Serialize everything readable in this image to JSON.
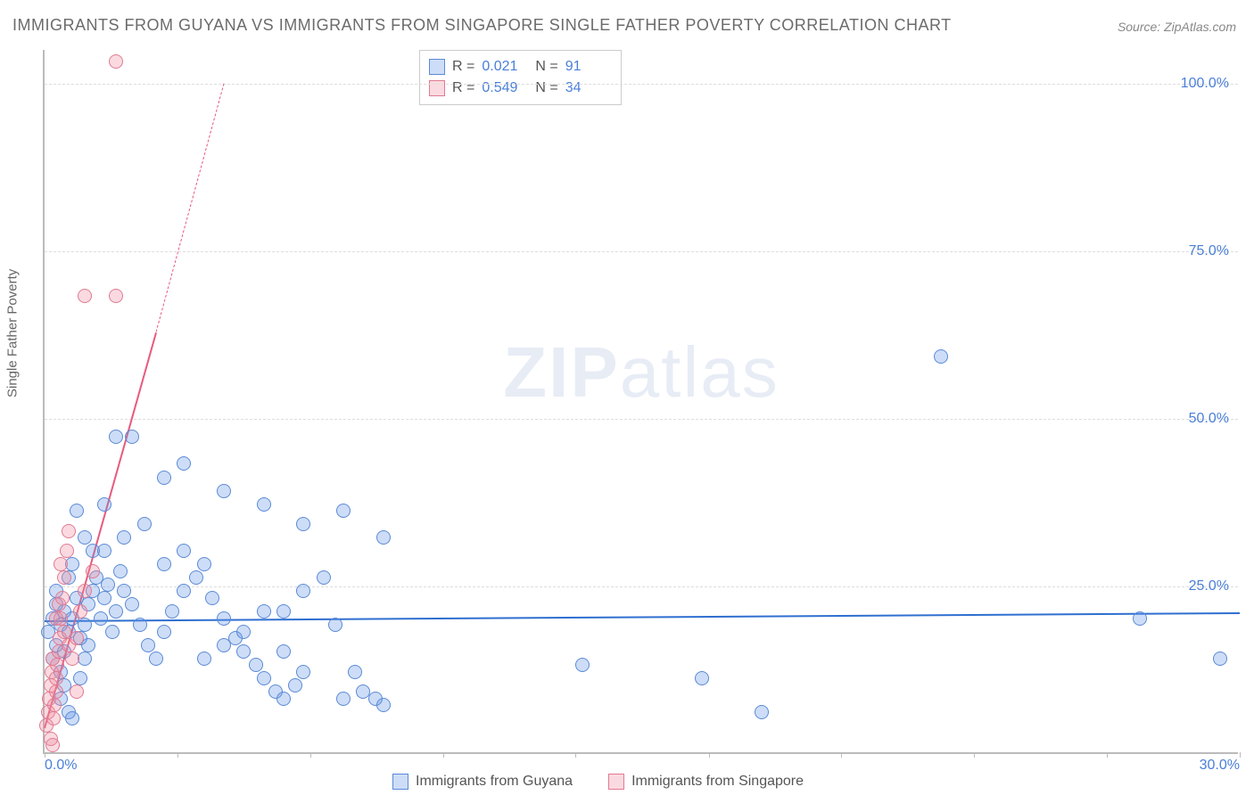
{
  "title": "IMMIGRANTS FROM GUYANA VS IMMIGRANTS FROM SINGAPORE SINGLE FATHER POVERTY CORRELATION CHART",
  "source": "Source: ZipAtlas.com",
  "watermark_bold": "ZIP",
  "watermark_rest": "atlas",
  "chart": {
    "type": "scatter",
    "ylabel": "Single Father Poverty",
    "xlim": [
      0,
      30
    ],
    "ylim": [
      0,
      105
    ],
    "xtick_marks": [
      0,
      3.33,
      6.67,
      10,
      13.33,
      16.67,
      20,
      23.33,
      26.67,
      30
    ],
    "xtick_labels": [
      {
        "v": 0,
        "label": "0.0%"
      },
      {
        "v": 30,
        "label": "30.0%"
      }
    ],
    "ytick_labels": [
      {
        "v": 25,
        "label": "25.0%"
      },
      {
        "v": 50,
        "label": "50.0%"
      },
      {
        "v": 75,
        "label": "75.0%"
      },
      {
        "v": 100,
        "label": "100.0%"
      }
    ],
    "grid_y": [
      25,
      50,
      75,
      100
    ],
    "grid_color": "#dddddd",
    "background_color": "#ffffff",
    "marker_radius": 8,
    "marker_stroke_width": 1,
    "series": [
      {
        "name": "Immigrants from Guyana",
        "fill": "rgba(100,150,230,0.32)",
        "stroke": "#5b8ad6",
        "R": "0.021",
        "N": "91",
        "trend": {
          "x1": 0,
          "y1": 20.0,
          "x2": 30,
          "y2": 21.2,
          "color": "#2f6fd0",
          "width": 2
        },
        "points": [
          [
            0.1,
            18
          ],
          [
            0.2,
            20
          ],
          [
            0.3,
            22
          ],
          [
            0.2,
            14
          ],
          [
            0.3,
            16
          ],
          [
            0.4,
            19
          ],
          [
            0.5,
            21
          ],
          [
            0.3,
            24
          ],
          [
            0.4,
            12
          ],
          [
            0.5,
            15
          ],
          [
            0.6,
            18
          ],
          [
            0.7,
            20
          ],
          [
            0.8,
            23
          ],
          [
            0.6,
            26
          ],
          [
            0.7,
            28
          ],
          [
            0.9,
            17
          ],
          [
            1.0,
            19
          ],
          [
            1.1,
            22
          ],
          [
            1.2,
            24
          ],
          [
            1.3,
            26
          ],
          [
            1.0,
            14
          ],
          [
            1.1,
            16
          ],
          [
            1.4,
            20
          ],
          [
            1.5,
            23
          ],
          [
            1.6,
            25
          ],
          [
            1.7,
            18
          ],
          [
            1.8,
            21
          ],
          [
            1.9,
            27
          ],
          [
            2.0,
            24
          ],
          [
            2.2,
            22
          ],
          [
            2.4,
            19
          ],
          [
            2.6,
            16
          ],
          [
            2.8,
            14
          ],
          [
            3.0,
            18
          ],
          [
            3.2,
            21
          ],
          [
            3.5,
            24
          ],
          [
            3.8,
            26
          ],
          [
            4.0,
            28
          ],
          [
            4.2,
            23
          ],
          [
            4.5,
            20
          ],
          [
            4.8,
            17
          ],
          [
            5.0,
            15
          ],
          [
            5.3,
            13
          ],
          [
            5.5,
            11
          ],
          [
            5.8,
            9
          ],
          [
            6.0,
            8
          ],
          [
            6.3,
            10
          ],
          [
            6.5,
            12
          ],
          [
            1.5,
            30
          ],
          [
            2.0,
            32
          ],
          [
            2.5,
            34
          ],
          [
            3.0,
            41
          ],
          [
            3.5,
            43
          ],
          [
            1.8,
            47
          ],
          [
            2.2,
            47
          ],
          [
            1.5,
            37
          ],
          [
            4.5,
            39
          ],
          [
            5.5,
            37
          ],
          [
            6.5,
            34
          ],
          [
            7.5,
            36
          ],
          [
            8.5,
            32
          ],
          [
            7.5,
            8
          ],
          [
            8.0,
            9
          ],
          [
            8.3,
            8
          ],
          [
            8.5,
            7
          ],
          [
            7.8,
            12
          ],
          [
            6.0,
            21
          ],
          [
            6.5,
            24
          ],
          [
            7.0,
            26
          ],
          [
            7.3,
            19
          ],
          [
            4.0,
            14
          ],
          [
            4.5,
            16
          ],
          [
            5.0,
            18
          ],
          [
            5.5,
            21
          ],
          [
            6.0,
            15
          ],
          [
            3.0,
            28
          ],
          [
            3.5,
            30
          ],
          [
            0.8,
            36
          ],
          [
            1.0,
            32
          ],
          [
            1.2,
            30
          ],
          [
            13.5,
            13
          ],
          [
            16.5,
            11
          ],
          [
            18.0,
            6
          ],
          [
            22.5,
            59
          ],
          [
            27.5,
            20
          ],
          [
            29.5,
            14
          ],
          [
            0.4,
            8
          ],
          [
            0.5,
            10
          ],
          [
            0.6,
            6
          ],
          [
            0.7,
            5
          ],
          [
            0.9,
            11
          ]
        ]
      },
      {
        "name": "Immigrants from Singapore",
        "fill": "rgba(240,140,160,0.32)",
        "stroke": "#e07a92",
        "R": "0.549",
        "N": "34",
        "trend": {
          "x1": 0,
          "y1": 4,
          "x2": 2.8,
          "y2": 63,
          "color": "#e85a7c",
          "width": 2
        },
        "trend_dash": {
          "x1": 2.8,
          "y1": 63,
          "x2": 4.5,
          "y2": 100,
          "color": "#e85a7c"
        },
        "points": [
          [
            0.05,
            4
          ],
          [
            0.1,
            6
          ],
          [
            0.12,
            8
          ],
          [
            0.15,
            10
          ],
          [
            0.18,
            12
          ],
          [
            0.2,
            14
          ],
          [
            0.22,
            5
          ],
          [
            0.25,
            7
          ],
          [
            0.28,
            9
          ],
          [
            0.3,
            11
          ],
          [
            0.32,
            13
          ],
          [
            0.35,
            15
          ],
          [
            0.38,
            17
          ],
          [
            0.4,
            20
          ],
          [
            0.45,
            23
          ],
          [
            0.5,
            26
          ],
          [
            0.55,
            30
          ],
          [
            0.6,
            33
          ],
          [
            0.3,
            20
          ],
          [
            0.35,
            22
          ],
          [
            0.4,
            28
          ],
          [
            0.5,
            18
          ],
          [
            0.6,
            16
          ],
          [
            0.7,
            14
          ],
          [
            0.8,
            17
          ],
          [
            0.9,
            21
          ],
          [
            1.0,
            24
          ],
          [
            1.2,
            27
          ],
          [
            0.15,
            2
          ],
          [
            0.2,
            1
          ],
          [
            0.8,
            9
          ],
          [
            1.0,
            68
          ],
          [
            1.8,
            68
          ],
          [
            1.8,
            103
          ]
        ]
      }
    ],
    "legend_labels": {
      "r_prefix": "R  =",
      "n_prefix": "N  ="
    }
  }
}
